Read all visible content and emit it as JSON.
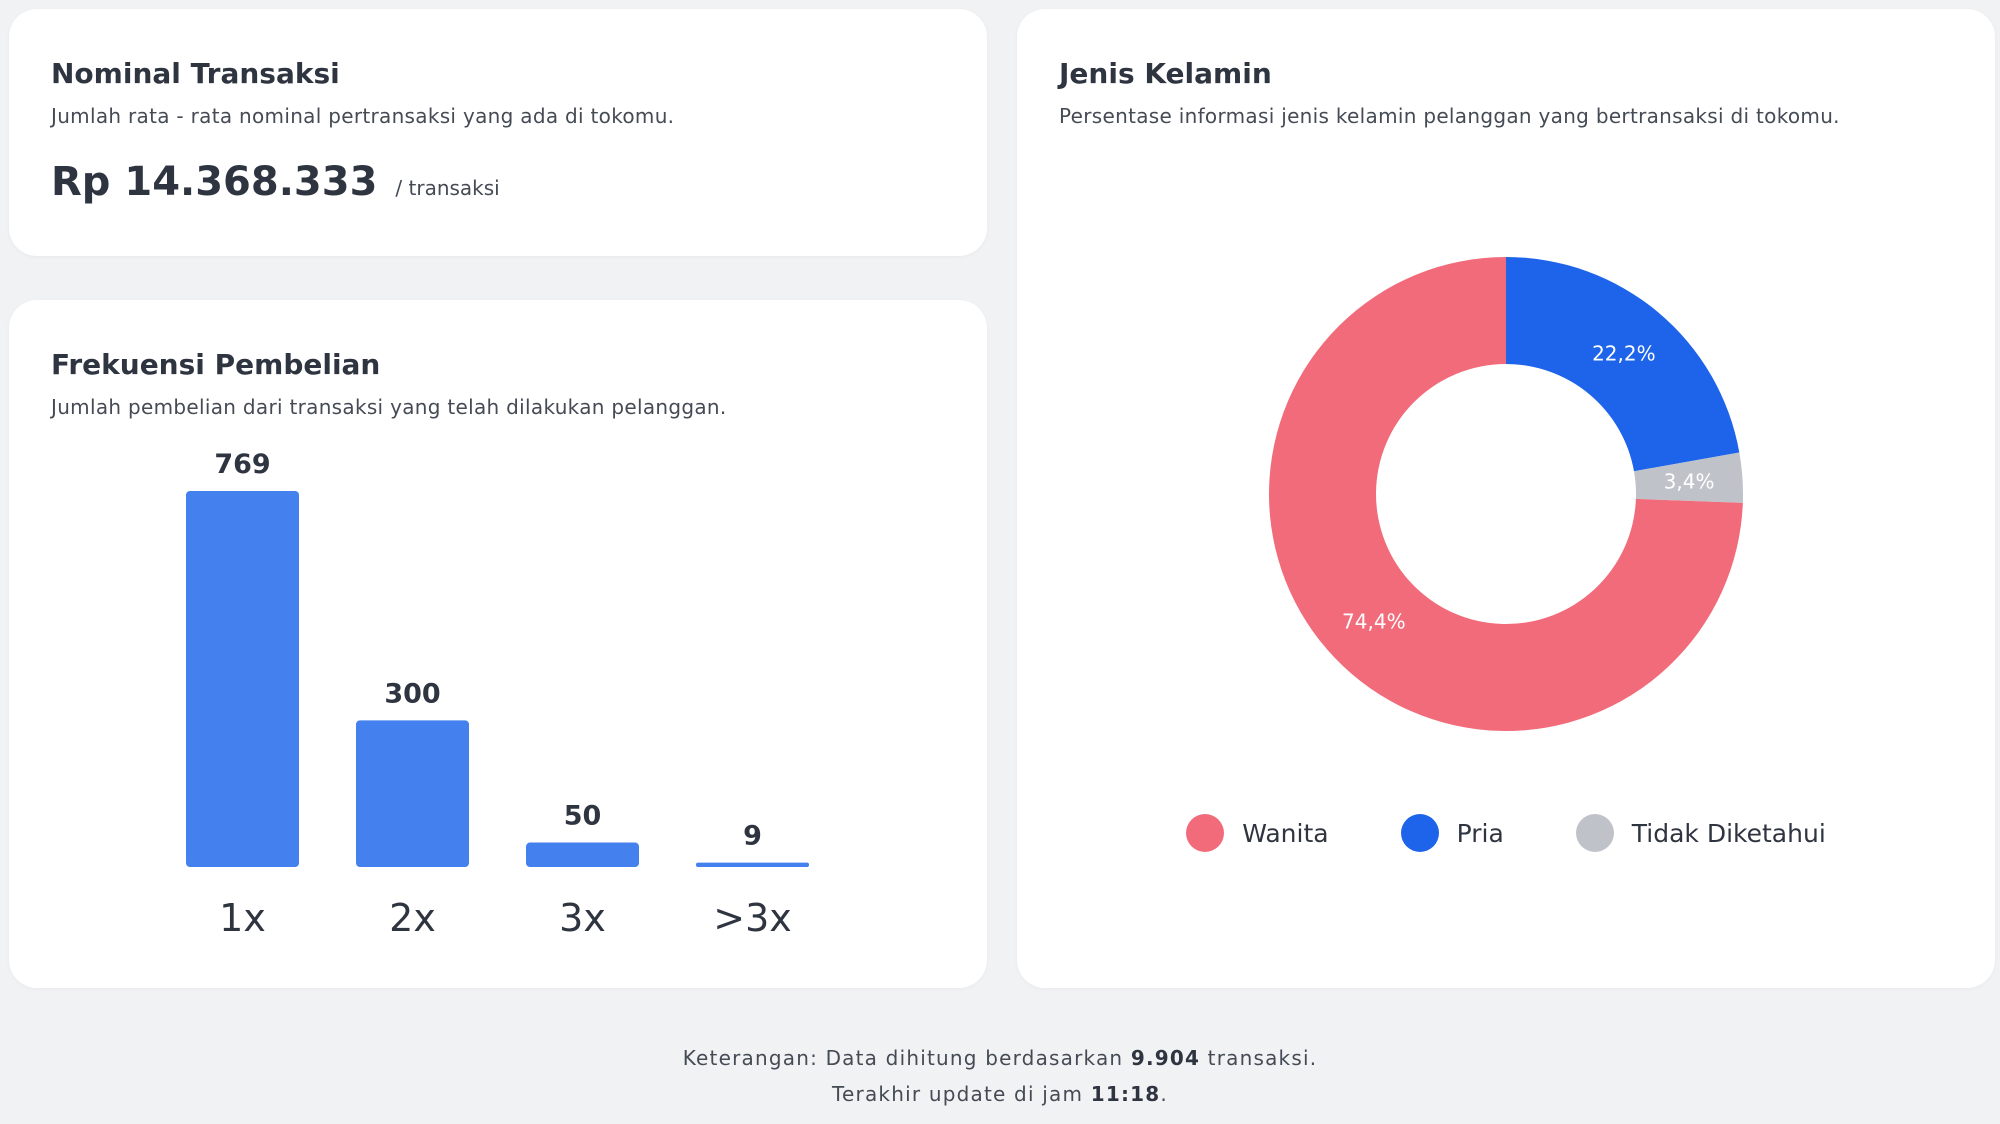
{
  "nominal": {
    "title": "Nominal Transaksi",
    "subtitle": "Jumlah rata - rata nominal pertransaksi yang ada di tokomu.",
    "amount": "Rp 14.368.333",
    "unit": "/ transaksi"
  },
  "frekuensi": {
    "title": "Frekuensi Pembelian",
    "subtitle": "Jumlah pembelian dari transaksi yang telah dilakukan pelanggan."
  },
  "gender": {
    "title": "Jenis Kelamin",
    "subtitle": "Persentase informasi jenis kelamin pelanggan yang bertransaksi di tokomu.",
    "legend": [
      {
        "label": "Wanita",
        "color": "#f26b7a"
      },
      {
        "label": "Pria",
        "color": "#1d64ea"
      },
      {
        "label": "Tidak Diketahui",
        "color": "#bfc3c9"
      }
    ]
  },
  "footer": {
    "line1_prefix": "Keterangan: Data dihitung berdasarkan ",
    "line1_bold": "9.904",
    "line1_suffix": " transaksi.",
    "line2_prefix": "Terakhir update di jam ",
    "line2_bold": "11:18",
    "line2_suffix": "."
  },
  "chart_data": [
    {
      "type": "bar",
      "categories": [
        "1x",
        "2x",
        "3x",
        ">3x"
      ],
      "values": [
        769,
        300,
        50,
        9
      ],
      "data_labels": [
        "769",
        "300",
        "50",
        "9"
      ],
      "ylim": [
        0,
        769
      ],
      "grid": false,
      "bar_color": "#4480ee"
    },
    {
      "type": "pie",
      "style": "donut",
      "labels": [
        "Pria",
        "Tidak Diketahui",
        "Wanita"
      ],
      "values": [
        22.2,
        3.4,
        74.4
      ],
      "value_labels": [
        "22,2%",
        "3,4%",
        "74,4%"
      ],
      "colors": [
        "#1d64ea",
        "#bfc3c9",
        "#f26b7a"
      ],
      "legend_placement": "bottom"
    }
  ]
}
